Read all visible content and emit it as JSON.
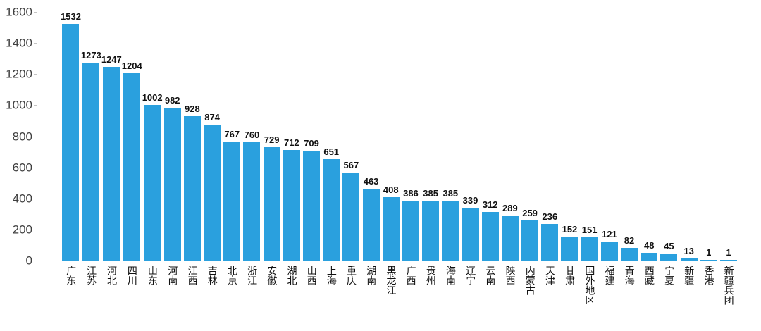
{
  "chart": {
    "background": "#ffffff",
    "bar_color": "#2aa0de",
    "axis_color": "#d6d6d6",
    "tick_color": "#c4c4c4",
    "ytick_label_color": "#3f3f3f",
    "value_label_color": "#111111",
    "category_label_color": "#111111"
  },
  "chart_data": {
    "type": "bar",
    "title": "",
    "xlabel": "",
    "ylabel": "",
    "grid": false,
    "legend": false,
    "ylim": [
      0,
      1600
    ],
    "yticks": [
      0,
      200,
      400,
      600,
      800,
      1000,
      1200,
      1400,
      1600
    ],
    "categories": [
      "广东",
      "江苏",
      "河北",
      "四川",
      "山东",
      "河南",
      "江西",
      "吉林",
      "北京",
      "浙江",
      "安徽",
      "湖北",
      "山西",
      "上海",
      "重庆",
      "湖南",
      "黑龙江",
      "广西",
      "贵州",
      "海南",
      "辽宁",
      "云南",
      "陕西",
      "内蒙古",
      "天津",
      "甘肃",
      "国外地区",
      "福建",
      "青海",
      "西藏",
      "宁夏",
      "新疆",
      "香港",
      "新疆兵团"
    ],
    "values": [
      1532,
      1273,
      1247,
      1204,
      1002,
      982,
      928,
      874,
      767,
      760,
      729,
      712,
      709,
      651,
      567,
      463,
      408,
      386,
      385,
      385,
      339,
      312,
      289,
      259,
      236,
      152,
      151,
      121,
      82,
      48,
      45,
      13,
      1,
      1
    ]
  }
}
